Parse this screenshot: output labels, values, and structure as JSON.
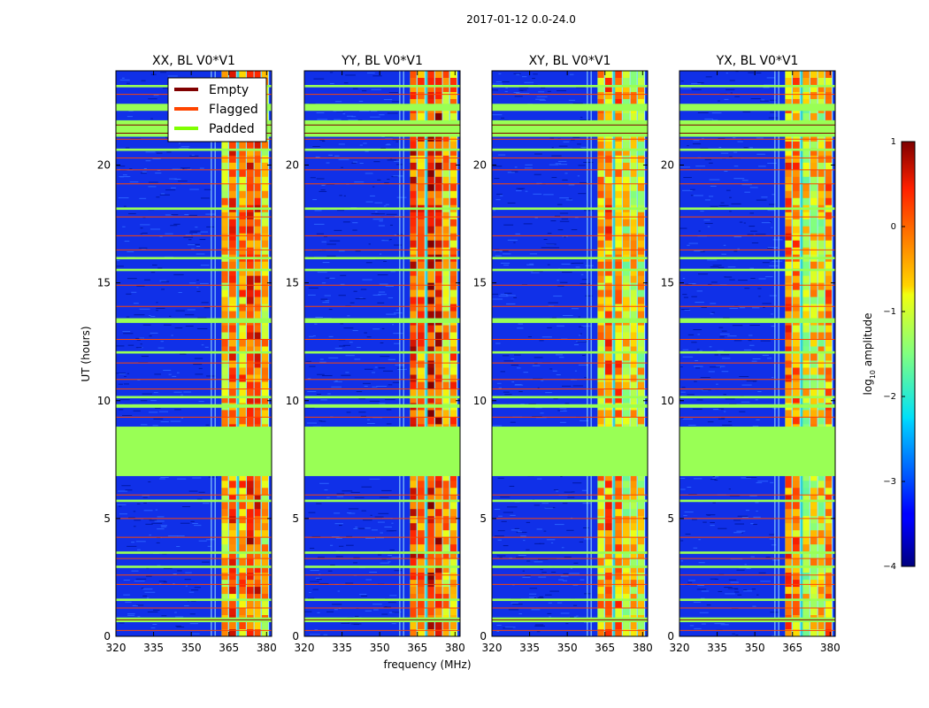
{
  "chart_data": {
    "type": "heatmap",
    "suptitle": "2017-01-12 0.0-24.0",
    "xlabel": "frequency (MHz)",
    "ylabel": "UT (hours)",
    "xlim": [
      320,
      382
    ],
    "ylim": [
      0,
      24
    ],
    "x_ticks": [
      320,
      335,
      350,
      365,
      380
    ],
    "y_ticks": [
      0,
      5,
      10,
      15,
      20
    ],
    "panels": [
      {
        "title": "XX, BL V0*V1"
      },
      {
        "title": "YY, BL V0*V1"
      },
      {
        "title": "XY, BL V0*V1"
      },
      {
        "title": "YX, BL V0*V1"
      }
    ],
    "legend": {
      "placement": "top-right of first panel",
      "entries": [
        {
          "label": "Empty",
          "color": "#800000"
        },
        {
          "label": "Flagged",
          "color": "#ff4500"
        },
        {
          "label": "Padded",
          "color": "#7fff00"
        }
      ]
    },
    "colorbar": {
      "label_prefix": "log",
      "label_sub": "10",
      "label_suffix": " amplitude",
      "range": [
        -4,
        1
      ],
      "ticks": [
        1,
        0,
        -1,
        -2,
        -3,
        -4
      ],
      "tick_labels": [
        "1",
        "0",
        "−1",
        "−2",
        "−3",
        "−4"
      ],
      "colormap": "jet"
    },
    "padded_time_ranges": [
      [
        6.8,
        8.9
      ],
      [
        21.2,
        21.9
      ],
      [
        22.3,
        22.6
      ],
      [
        0.6,
        0.8
      ],
      [
        13.3,
        13.5
      ],
      [
        15.5,
        15.6
      ],
      [
        9.7,
        9.85
      ],
      [
        18.1,
        18.2
      ],
      [
        3.5,
        3.6
      ],
      [
        5.7,
        5.8
      ],
      [
        2.9,
        3.0
      ],
      [
        10.1,
        10.2
      ],
      [
        12.0,
        12.1
      ],
      [
        16.0,
        16.1
      ],
      [
        20.6,
        20.7
      ],
      [
        23.3,
        23.4
      ],
      [
        1.5,
        1.6
      ]
    ],
    "flagged_times": [
      0.25,
      1.2,
      2.2,
      2.6,
      3.3,
      4.2,
      5.0,
      6.0,
      9.3,
      10.5,
      10.9,
      11.6,
      12.6,
      14.0,
      14.9,
      16.4,
      17.0,
      17.8,
      19.2,
      19.8,
      20.3,
      21.1,
      23.0
    ],
    "high_amplitude_band_mhz": [
      362,
      381
    ]
  }
}
